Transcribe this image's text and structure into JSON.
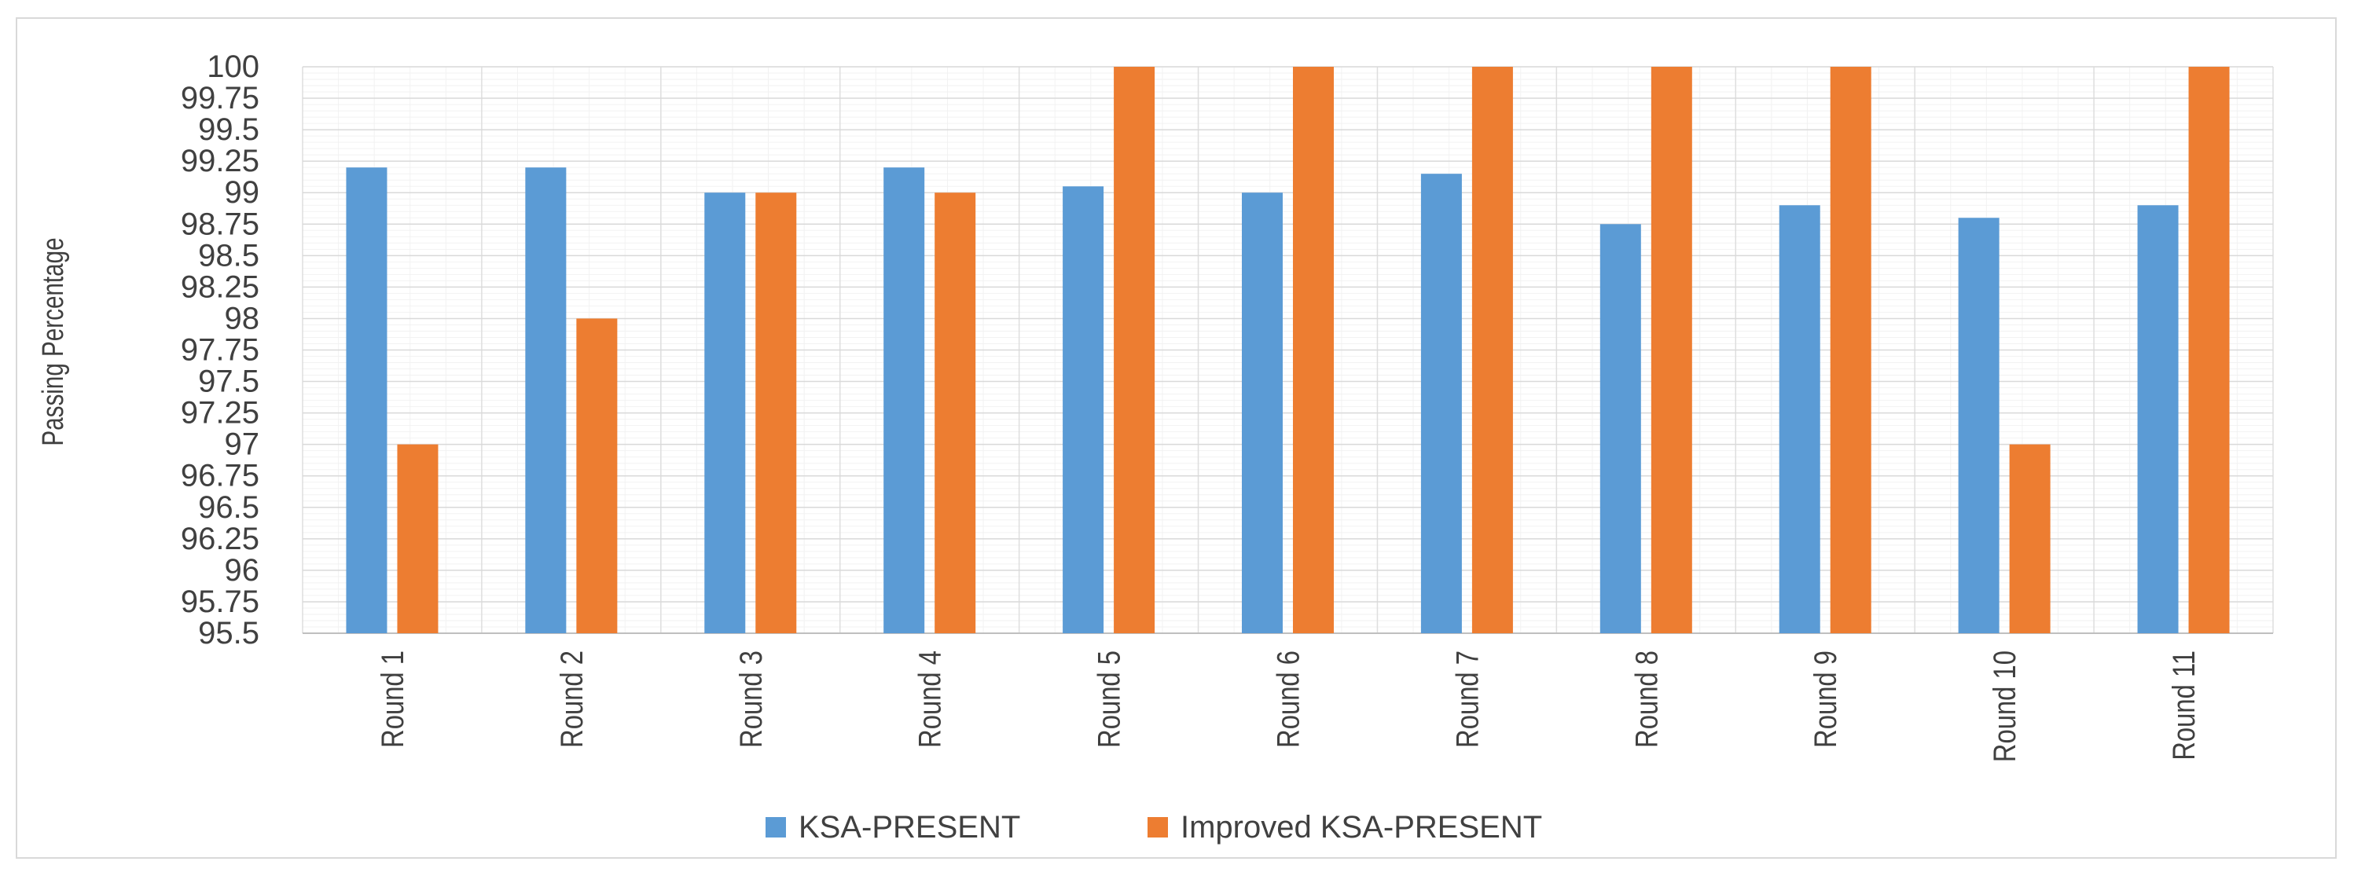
{
  "chart_data": {
    "type": "bar",
    "title": "",
    "xlabel": "",
    "ylabel": "Passing Percentage",
    "ylim": [
      95.5,
      100
    ],
    "ytick_step": 0.25,
    "ytick_labels": [
      "95.5",
      "95.75",
      "96",
      "96.25",
      "96.5",
      "96.75",
      "97",
      "97.25",
      "97.5",
      "97.75",
      "98",
      "98.25",
      "98.5",
      "98.75",
      "99",
      "99.25",
      "99.5",
      "99.75",
      "100"
    ],
    "grid": true,
    "legend_position": "bottom-center",
    "categories": [
      "Round 1",
      "Round 2",
      "Round 3",
      "Round 4",
      "Round 5",
      "Round 6",
      "Round 7",
      "Round 8",
      "Round 9",
      "Round 10",
      "Round 11"
    ],
    "series": [
      {
        "name": "KSA-PRESENT",
        "color": "#5b9bd5",
        "values": [
          99.2,
          99.2,
          99.0,
          99.2,
          99.05,
          99.0,
          99.15,
          98.75,
          98.9,
          98.8,
          98.9
        ]
      },
      {
        "name": "Improved KSA-PRESENT",
        "color": "#ed7d31",
        "values": [
          97.0,
          98.0,
          99.0,
          99.0,
          100,
          100,
          100,
          100,
          100,
          97.0,
          100
        ]
      }
    ]
  }
}
